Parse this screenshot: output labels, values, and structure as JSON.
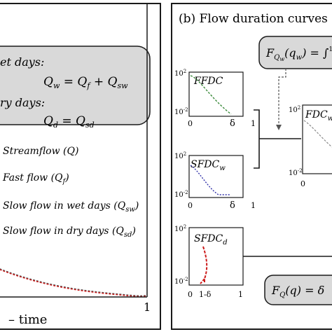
{
  "colors": {
    "frame": "#1a1a1a",
    "box_fill": "#d9d9d9",
    "ffdc_curve": "#3a8a3a",
    "sfdcw_curve": "#3333aa",
    "sfdcd_curve": "#cc1a1a",
    "arrow_dashed": "#555555"
  },
  "left_panel": {
    "box_wet_heading": "et days:",
    "box_wet_eq": "Q_w = Q_f + Q_sw",
    "box_dry_heading": "ry days:",
    "box_dry_eq": "Q_d = Q_sd",
    "legend": [
      {
        "label": "Streamflow (Q)"
      },
      {
        "label": "Fast flow (Q_f)"
      },
      {
        "label": "Slow flow in wet days (Q_sw)"
      },
      {
        "label": "Slow flow in dry days (Q_sd)"
      }
    ],
    "xaxis_tick_end": "1",
    "xaxis_label": "time"
  },
  "right_panel": {
    "title": "(b) Flow duration curves",
    "formula_top": "F_Qw(q_w) = ∫",
    "formula_bottom": "F_Q(q) = δ",
    "ffdc": {
      "label": "FFDC",
      "ytop": "10^2",
      "ybot": "10^-2",
      "x0": "0",
      "xmid": "δ",
      "x1": "1"
    },
    "sfdcw": {
      "label": "SFDC_w",
      "ytop": "10^2",
      "ybot": "10^-2",
      "x0": "0",
      "xmid": "δ",
      "x1": "1"
    },
    "sfdcd": {
      "label": "SFDC_d",
      "ytop": "10^2",
      "ybot": "10^-2",
      "x0": "0",
      "xmid": "1-δ",
      "x1": "1"
    },
    "fdcw": {
      "label": "FDC_w",
      "ytop": "10^2",
      "ybot": "10^-2",
      "x0": "0"
    }
  }
}
